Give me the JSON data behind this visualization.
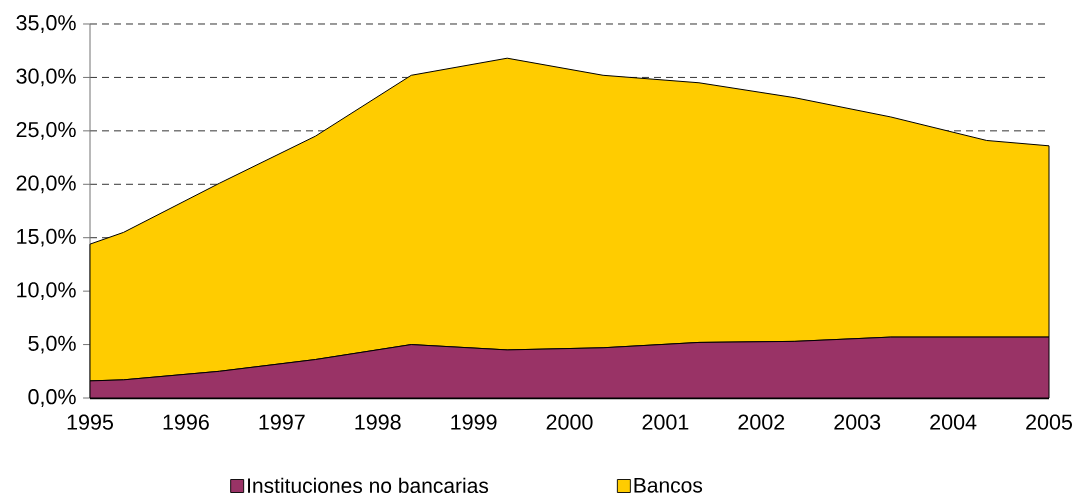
{
  "chart_data": {
    "type": "area",
    "stacked": true,
    "x": [
      1995,
      1995.35,
      1996.35,
      1997.35,
      1998.35,
      1999.35,
      2000.35,
      2001.35,
      2002.35,
      2003.35,
      2004.35,
      2005
    ],
    "series": [
      {
        "name": "Instituciones no bancarias",
        "color": "#993366",
        "values": [
          1.6,
          1.7,
          2.5,
          3.6,
          5.0,
          4.5,
          4.7,
          5.2,
          5.3,
          5.7,
          5.7,
          5.7
        ]
      },
      {
        "name": "Bancos",
        "color": "#ffcc00",
        "values": [
          12.8,
          13.8,
          17.6,
          20.9,
          25.2,
          27.3,
          25.5,
          24.3,
          22.8,
          20.6,
          18.4,
          17.9
        ]
      }
    ],
    "xlim": [
      1995,
      2005
    ],
    "xticks": [
      1995,
      1996,
      1997,
      1998,
      1999,
      2000,
      2001,
      2002,
      2003,
      2004,
      2005
    ],
    "ylim": [
      0,
      35
    ],
    "yticks": [
      {
        "value": 0,
        "label": "0,0%"
      },
      {
        "value": 5,
        "label": "5,0%"
      },
      {
        "value": 10,
        "label": "10,0%"
      },
      {
        "value": 15,
        "label": "15,0%"
      },
      {
        "value": 20,
        "label": "20,0%"
      },
      {
        "value": 25,
        "label": "25,0%"
      },
      {
        "value": 30,
        "label": "30,0%"
      },
      {
        "value": 35,
        "label": "35,0%"
      }
    ],
    "grid": "y",
    "legend": "bottom"
  }
}
